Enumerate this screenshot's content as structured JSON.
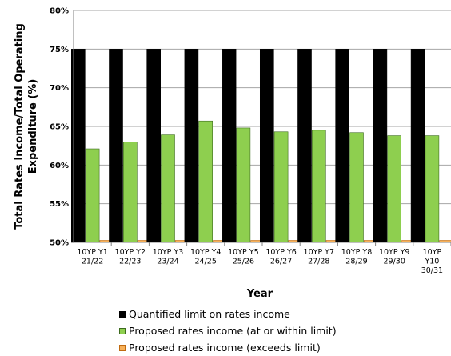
{
  "chart_data": {
    "type": "bar",
    "ylabel": "Total Rates Income/Total Operating Expenditure (%)",
    "xlabel": "Year",
    "ylim": [
      50,
      80
    ],
    "yticks": [
      50,
      55,
      60,
      65,
      70,
      75,
      80
    ],
    "ytick_labels": [
      "50%",
      "55%",
      "60%",
      "65%",
      "70%",
      "75%",
      "80%"
    ],
    "categories": [
      [
        "10YP Y1",
        "21/22"
      ],
      [
        "10YP Y2",
        "22/23"
      ],
      [
        "10YP Y3",
        "23/24"
      ],
      [
        "10YP Y4",
        "24/25"
      ],
      [
        "10YP Y5",
        "25/26"
      ],
      [
        "10YP Y6",
        "26/27"
      ],
      [
        "10YP Y7",
        "27/28"
      ],
      [
        "10YP Y8",
        "28/29"
      ],
      [
        "10YP Y9",
        "29/30"
      ],
      [
        "10YP",
        "Y10",
        "30/31"
      ]
    ],
    "series": [
      {
        "name": "Quantified limit on rates income",
        "color": "#000000",
        "values": [
          75,
          75,
          75,
          75,
          75,
          75,
          75,
          75,
          75,
          75
        ]
      },
      {
        "name": "Proposed rates income (at or within limit)",
        "color": "#8ecf4f",
        "values": [
          62.1,
          63.0,
          63.9,
          65.7,
          64.8,
          64.3,
          64.5,
          64.2,
          63.8,
          63.8
        ]
      },
      {
        "name": "Proposed rates income (exceeds limit)",
        "color": "#f7b15a",
        "values": [
          50,
          50,
          50,
          50,
          50,
          50,
          50,
          50,
          50,
          50
        ]
      }
    ],
    "grid": true,
    "legend_position": "bottom"
  }
}
